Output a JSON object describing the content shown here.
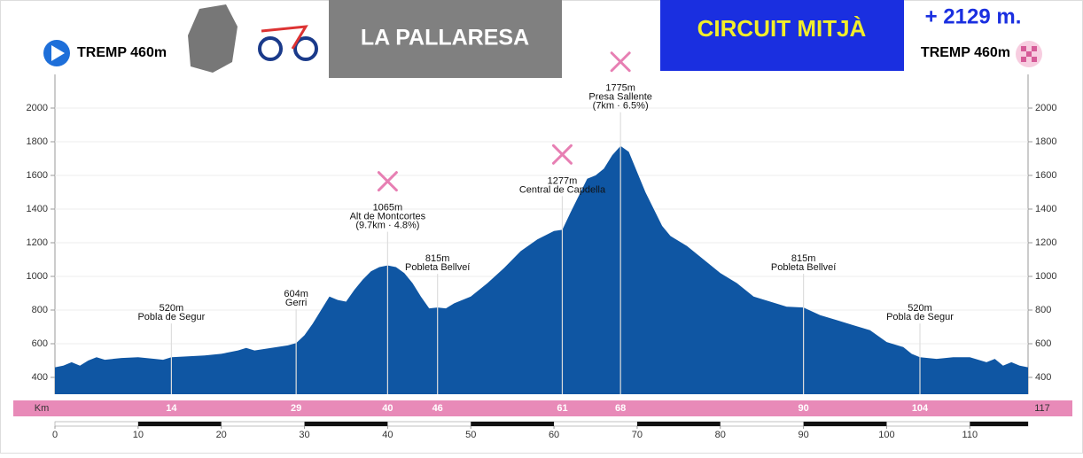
{
  "chart_data": {
    "type": "area",
    "header": {
      "start": "TREMP 460m",
      "end": "TREMP 460m",
      "race": "LA PALLARESA",
      "circuit": "CIRCUIT MITJÀ",
      "climb": "+ 2129 m."
    },
    "x_unit": "Km",
    "x": [
      0,
      1,
      2,
      3,
      4,
      5,
      6,
      8,
      10,
      12,
      13,
      14,
      16,
      18,
      20,
      22,
      23,
      24,
      26,
      28,
      29,
      30,
      31,
      32,
      33,
      34,
      35,
      36,
      37,
      38,
      39,
      40,
      41,
      42,
      43,
      44,
      45,
      46,
      47,
      48,
      50,
      52,
      54,
      56,
      58,
      60,
      61,
      62,
      63,
      64,
      65,
      66,
      67,
      68,
      69,
      70,
      71,
      72,
      73,
      74,
      76,
      78,
      80,
      82,
      84,
      86,
      88,
      90,
      92,
      94,
      96,
      98,
      100,
      102,
      103,
      104,
      106,
      108,
      110,
      112,
      113,
      114,
      115,
      116,
      117
    ],
    "values": [
      460,
      470,
      490,
      470,
      500,
      520,
      505,
      515,
      520,
      510,
      505,
      520,
      525,
      530,
      540,
      560,
      575,
      560,
      575,
      590,
      604,
      650,
      720,
      800,
      880,
      860,
      850,
      920,
      980,
      1030,
      1055,
      1065,
      1055,
      1020,
      960,
      880,
      810,
      815,
      810,
      840,
      880,
      960,
      1050,
      1150,
      1220,
      1270,
      1277,
      1380,
      1480,
      1580,
      1600,
      1640,
      1720,
      1775,
      1740,
      1620,
      1500,
      1400,
      1300,
      1240,
      1180,
      1100,
      1020,
      960,
      880,
      850,
      820,
      815,
      770,
      740,
      710,
      680,
      610,
      580,
      540,
      520,
      510,
      520,
      520,
      490,
      510,
      470,
      490,
      470,
      460
    ],
    "color": "#0f56a3",
    "xlim": [
      0,
      117
    ],
    "xticks": [
      0,
      10,
      20,
      30,
      40,
      50,
      60,
      70,
      80,
      90,
      100,
      110
    ],
    "ylim": [
      300,
      2200
    ],
    "yticks": [
      400,
      600,
      800,
      1000,
      1200,
      1400,
      1600,
      1800,
      2000
    ],
    "grid": true,
    "annotations": [
      {
        "x": 14,
        "y": 520,
        "y_label": "520m",
        "name": "Pobla de Segur"
      },
      {
        "x": 29,
        "y": 604,
        "y_label": "604m",
        "name": "Gerri"
      },
      {
        "x": 40,
        "y": 1065,
        "y_label": "1065m",
        "name": "Alt de Montcortes",
        "detail": "(9.7km · 4.8%)",
        "food": true
      },
      {
        "x": 46,
        "y": 815,
        "y_label": "815m",
        "name": "Pobleta Bellveí"
      },
      {
        "x": 61,
        "y": 1277,
        "y_label": "1277m",
        "name": "Central de Capdella",
        "food": true
      },
      {
        "x": 68,
        "y": 1775,
        "y_label": "1775m",
        "name": "Presa Sallente",
        "detail": "(7km · 6.5%)",
        "food": true
      },
      {
        "x": 90,
        "y": 815,
        "y_label": "815m",
        "name": "Pobleta Bellveí"
      },
      {
        "x": 104,
        "y": 520,
        "y_label": "520m",
        "name": "Pobla de Segur"
      }
    ]
  }
}
